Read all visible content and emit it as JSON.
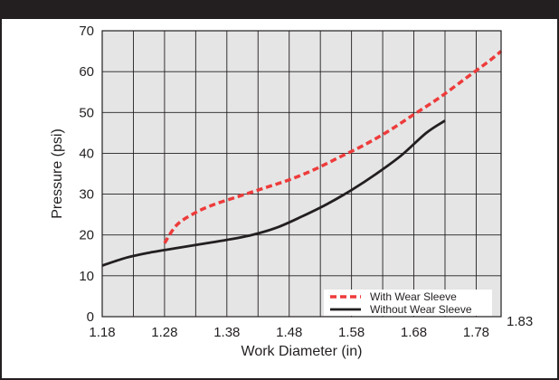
{
  "chart_data": {
    "type": "line",
    "xlabel": "Work Diameter (in)",
    "ylabel": "Pressure (psi)",
    "xlim": [
      1.18,
      1.82
    ],
    "ylim": [
      0,
      70
    ],
    "x_ticks": [
      "1.18",
      "1.28",
      "1.38",
      "1.48",
      "1.58",
      "1.68",
      "1.78"
    ],
    "x_extra_label": "1.83",
    "y_ticks": [
      "0",
      "10",
      "20",
      "30",
      "40",
      "50",
      "60",
      "70"
    ],
    "x_grid_step": 0.05,
    "y_grid_step": 10,
    "grid": true,
    "legend_position": "bottom-right",
    "series": [
      {
        "name": "With Wear Sleeve",
        "color": "#ee3b3b",
        "style": "dashed",
        "x": [
          1.28,
          1.3,
          1.33,
          1.36,
          1.4,
          1.44,
          1.48,
          1.52,
          1.56,
          1.6,
          1.64,
          1.68,
          1.72,
          1.76,
          1.8,
          1.82
        ],
        "y": [
          18,
          22.5,
          25.5,
          27.5,
          29.5,
          31.5,
          33.5,
          36,
          39,
          42,
          45.5,
          49.5,
          53.5,
          58,
          62.5,
          65
        ]
      },
      {
        "name": "Without Wear Sleeve",
        "color": "#231f20",
        "style": "solid",
        "x": [
          1.18,
          1.22,
          1.26,
          1.3,
          1.34,
          1.38,
          1.42,
          1.46,
          1.5,
          1.54,
          1.58,
          1.62,
          1.66,
          1.7,
          1.73
        ],
        "y": [
          12.5,
          14.5,
          15.8,
          16.8,
          17.8,
          18.8,
          20,
          21.8,
          24.5,
          27.5,
          31,
          35,
          39.5,
          45,
          48
        ]
      }
    ]
  }
}
